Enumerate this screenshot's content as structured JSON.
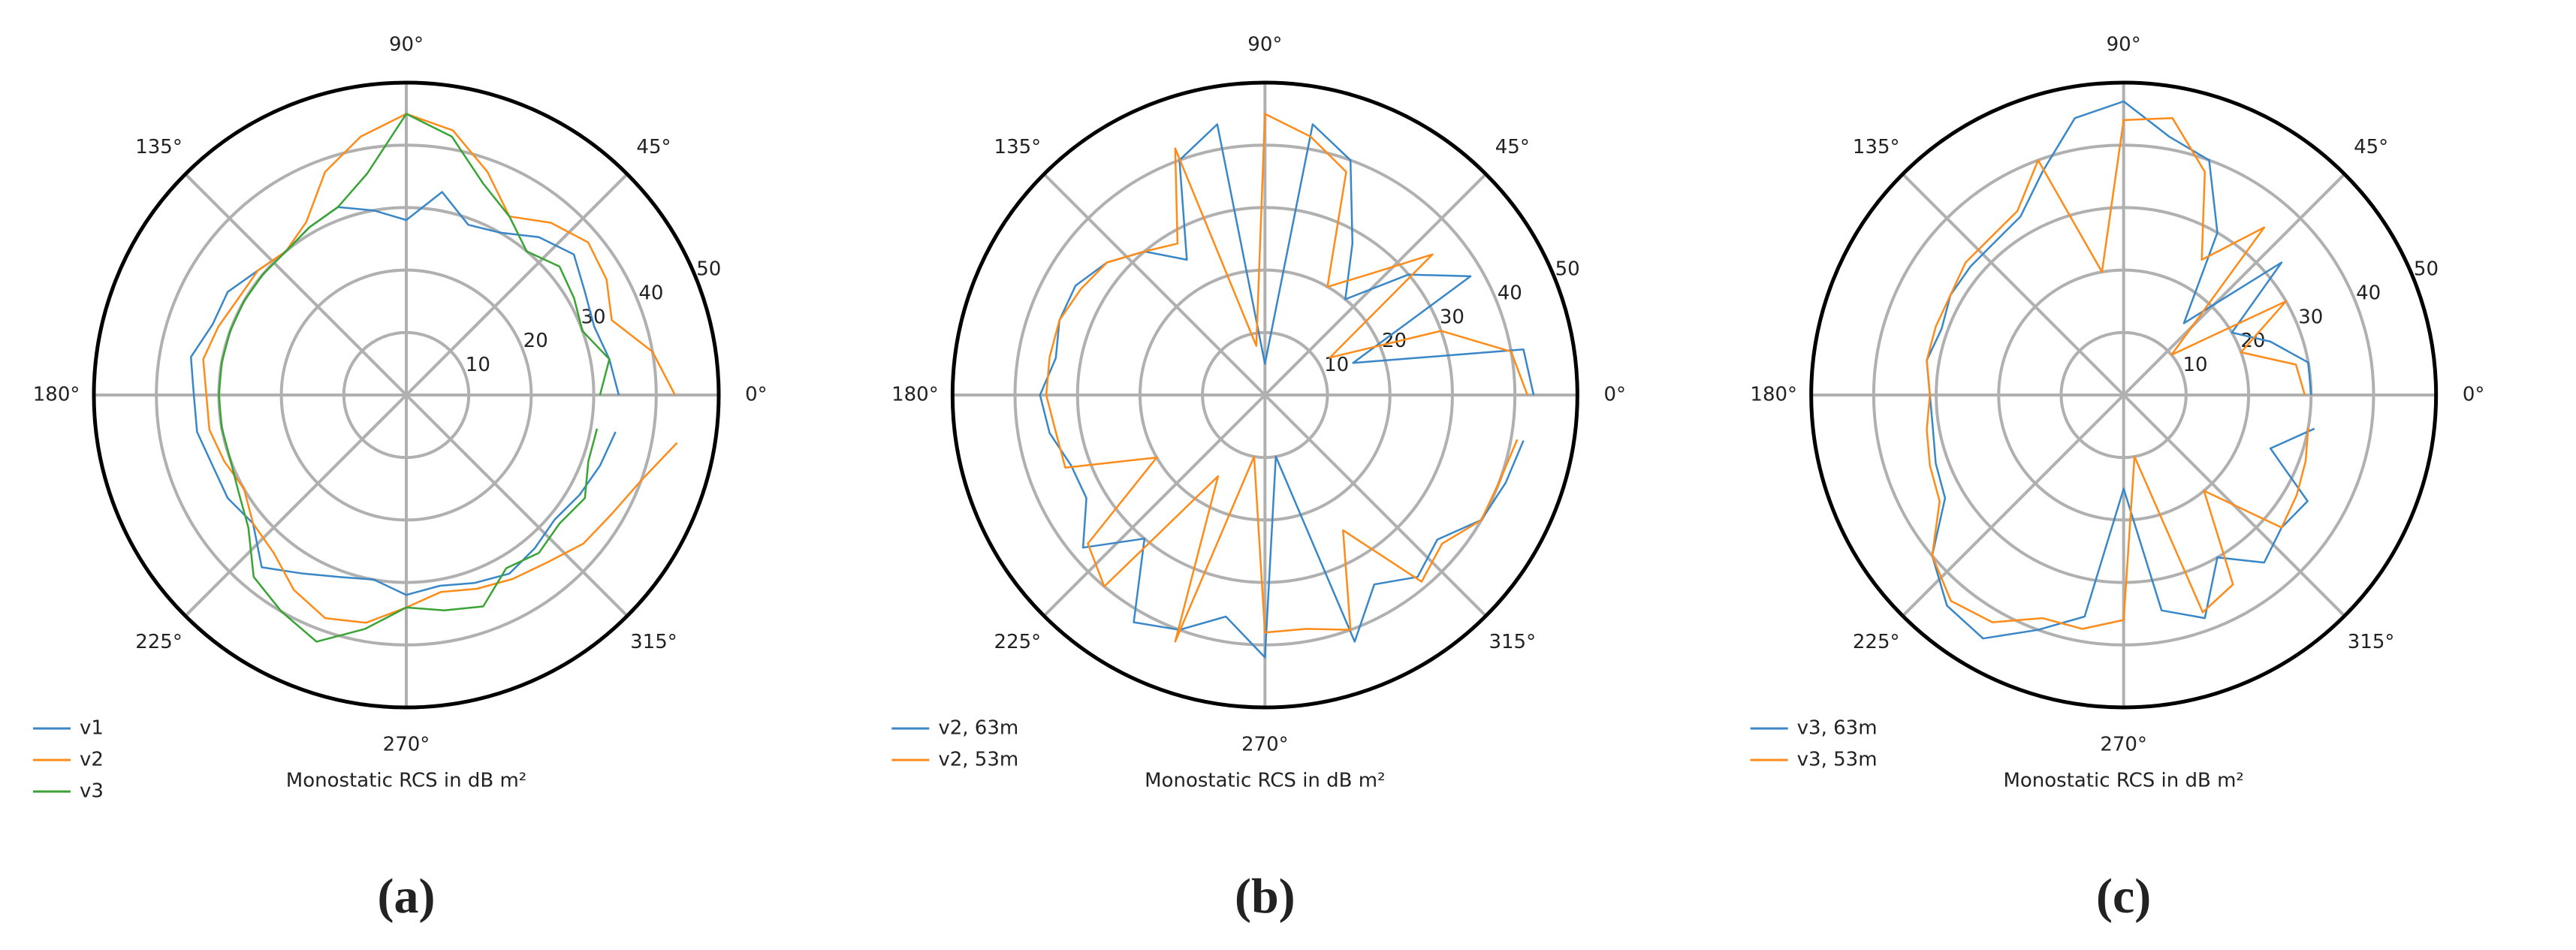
{
  "chart_data": [
    {
      "type": "polar",
      "caption": "(a)",
      "axis_label": "Monostatic RCS in dB m²",
      "theta": [
        0,
        10,
        20,
        30,
        40,
        50,
        60,
        70,
        80,
        90,
        100,
        110,
        120,
        130,
        140,
        150,
        160,
        170,
        180,
        190,
        200,
        210,
        220,
        230,
        240,
        250,
        260,
        270,
        280,
        290,
        300,
        310,
        320,
        330,
        340,
        350
      ],
      "rlim": [
        0,
        50
      ],
      "rticks": [
        10,
        20,
        30,
        40,
        50
      ],
      "thetaticks": [
        {
          "value": 0,
          "label": "0°"
        },
        {
          "value": 45,
          "label": "45°"
        },
        {
          "value": 90,
          "label": "90°"
        },
        {
          "value": 135,
          "label": "135°"
        },
        {
          "value": 180,
          "label": "180°"
        },
        {
          "value": 225,
          "label": "225°"
        },
        {
          "value": 270,
          "label": "270°"
        },
        {
          "value": 315,
          "label": "315°"
        }
      ],
      "grid": true,
      "series": [
        {
          "name": "v1",
          "color": "#3a87c8",
          "values": [
            34,
            33,
            32,
            33,
            35,
            33,
            30,
            29,
            33,
            28,
            30,
            32,
            31,
            30,
            31,
            33,
            33,
            35,
            34,
            34,
            33,
            33,
            32,
            36,
            33,
            31,
            30,
            32,
            31,
            32,
            33,
            32,
            31,
            32,
            33,
            34
          ]
        },
        {
          "name": "v2",
          "color": "#ff8c1a",
          "values": [
            43,
            40,
            35,
            37,
            38,
            36,
            33,
            38,
            43,
            45,
            42,
            38,
            32,
            30,
            31,
            31,
            32,
            33,
            32,
            32,
            31,
            30,
            32,
            33,
            36,
            38,
            37,
            34,
            32,
            33,
            34,
            35,
            37,
            38,
            40,
            44
          ]
        },
        {
          "name": "v3",
          "color": "#3aa335",
          "values": [
            31,
            33,
            30,
            31,
            32,
            30,
            33,
            36,
            42,
            45,
            36,
            32,
            31,
            30,
            30,
            30,
            30,
            30,
            30,
            30,
            30,
            31,
            33,
            38,
            40,
            42,
            38,
            34,
            35,
            36,
            32,
            33,
            32,
            33,
            31,
            31
          ]
        }
      ]
    },
    {
      "type": "polar",
      "caption": "(b)",
      "axis_label": "Monostatic RCS in dB m²",
      "theta": [
        0,
        10,
        20,
        30,
        40,
        50,
        60,
        70,
        80,
        90,
        100,
        110,
        120,
        130,
        140,
        150,
        160,
        170,
        180,
        190,
        200,
        210,
        220,
        230,
        240,
        250,
        260,
        270,
        280,
        290,
        300,
        310,
        320,
        330,
        340,
        350
      ],
      "rlim": [
        0,
        50
      ],
      "rticks": [
        10,
        20,
        30,
        40,
        50
      ],
      "thetaticks": [
        {
          "value": 0,
          "label": "0°"
        },
        {
          "value": 45,
          "label": "45°"
        },
        {
          "value": 90,
          "label": "90°"
        },
        {
          "value": 135,
          "label": "135°"
        },
        {
          "value": 180,
          "label": "180°"
        },
        {
          "value": 225,
          "label": "225°"
        },
        {
          "value": 270,
          "label": "270°"
        },
        {
          "value": 315,
          "label": "315°"
        }
      ],
      "grid": true,
      "series": [
        {
          "name": "v2, 63m",
          "color": "#3a87c8",
          "values": [
            43,
            42,
            15,
            38,
            30,
            20,
            28,
            40,
            44,
            5,
            44,
            40,
            25,
            30,
            33,
            35,
            35,
            34,
            36,
            35,
            33,
            33,
            38,
            30,
            42,
            40,
            36,
            42,
            10,
            42,
            35,
            38,
            36,
            40,
            41,
            42
          ]
        },
        {
          "name": "v2, 53m",
          "color": "#ff8c1a",
          "values": [
            42,
            40,
            30,
            12,
            35,
            25,
            20,
            38,
            42,
            45,
            8,
            42,
            28,
            30,
            33,
            34,
            35,
            35,
            35,
            34,
            34,
            20,
            37,
            40,
            15,
            42,
            10,
            38,
            38,
            40,
            25,
            39,
            37,
            40,
            40,
            41
          ]
        }
      ]
    },
    {
      "type": "polar",
      "caption": "(c)",
      "axis_label": "Monostatic RCS in dB m²",
      "theta": [
        0,
        10,
        20,
        30,
        40,
        50,
        60,
        70,
        80,
        90,
        100,
        110,
        120,
        130,
        140,
        150,
        160,
        170,
        180,
        190,
        200,
        210,
        220,
        230,
        240,
        250,
        260,
        270,
        280,
        290,
        300,
        310,
        320,
        330,
        340,
        350
      ],
      "rlim": [
        0,
        50
      ],
      "rticks": [
        10,
        20,
        30,
        40,
        50
      ],
      "thetaticks": [
        {
          "value": 0,
          "label": "0°"
        },
        {
          "value": 45,
          "label": "45°"
        },
        {
          "value": 90,
          "label": "90°"
        },
        {
          "value": 135,
          "label": "135°"
        },
        {
          "value": 180,
          "label": "180°"
        },
        {
          "value": 225,
          "label": "225°"
        },
        {
          "value": 270,
          "label": "270°"
        },
        {
          "value": 315,
          "label": "315°"
        }
      ],
      "grid": true,
      "series": [
        {
          "name": "v3, 63m",
          "color": "#3a87c8",
          "values": [
            30,
            30,
            25,
            20,
            33,
            15,
            30,
            40,
            42,
            47,
            45,
            38,
            33,
            32,
            32,
            32,
            31,
            32,
            31,
            31,
            32,
            33,
            40,
            44,
            45,
            40,
            36,
            15,
            35,
            38,
            30,
            35,
            33,
            34,
            25,
            31
          ]
        },
        {
          "name": "v3, 53m",
          "color": "#ff8c1a",
          "values": [
            29,
            28,
            20,
            30,
            10,
            35,
            25,
            38,
            45,
            44,
            20,
            40,
            34,
            33,
            33,
            32,
            32,
            32,
            31,
            32,
            33,
            34,
            40,
            43,
            42,
            38,
            38,
            36,
            10,
            37,
            35,
            20,
            33,
            32,
            31,
            30
          ]
        }
      ]
    }
  ]
}
